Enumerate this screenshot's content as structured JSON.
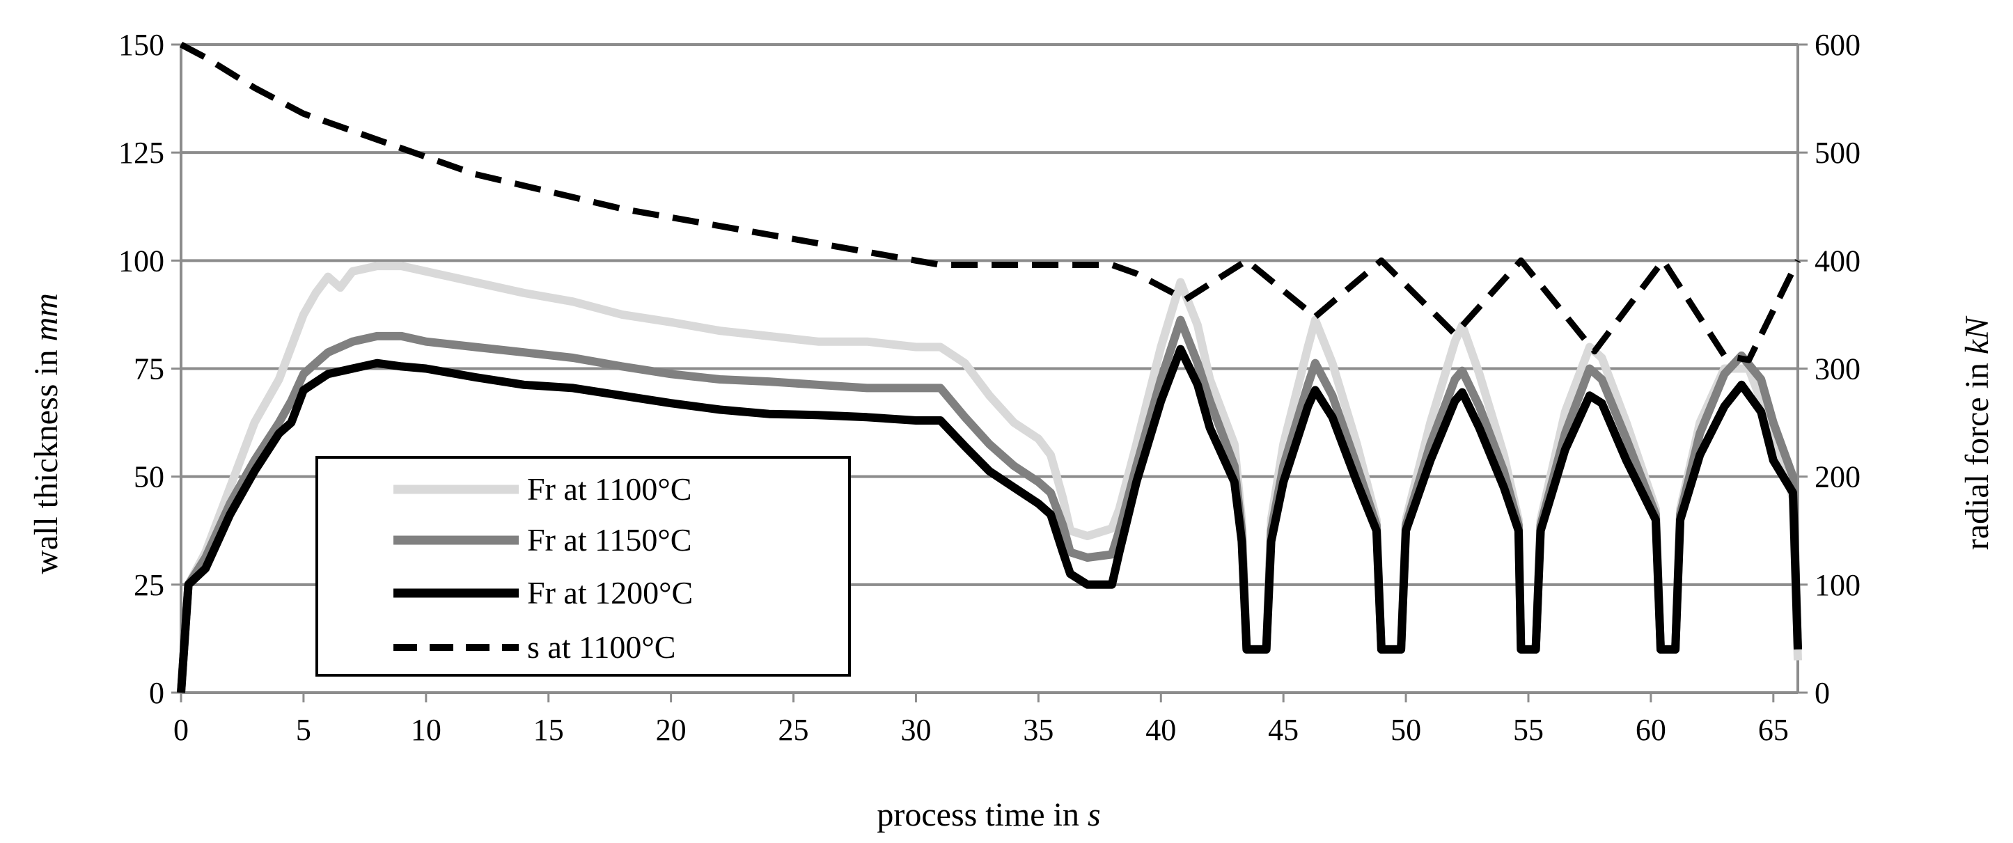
{
  "chart_data": {
    "type": "line",
    "title": "",
    "xlabel": {
      "text": "process time in ",
      "unit": "s"
    },
    "ylabel_left": {
      "text": "wall thickness in ",
      "unit": "mm"
    },
    "ylabel_right": {
      "text": "radial force in ",
      "unit": "kN"
    },
    "xlim": [
      0,
      66
    ],
    "ylim_left": [
      0,
      150
    ],
    "ylim_right": [
      0,
      600
    ],
    "x_ticks": [
      "0",
      "5",
      "10",
      "15",
      "20",
      "25",
      "30",
      "35",
      "40",
      "45",
      "50",
      "55",
      "60",
      "65"
    ],
    "y_left_ticks": [
      "0",
      "25",
      "50",
      "75",
      "100",
      "125",
      "150"
    ],
    "y_right_ticks": [
      "0",
      "100",
      "200",
      "300",
      "400",
      "500",
      "600"
    ],
    "grid": "horizontal",
    "legend_position": "lower-left",
    "series": [
      {
        "name": "Fr at 1100°C",
        "axis": "right",
        "color": "#d9d9d9",
        "style": "solid",
        "points": [
          [
            0,
            0
          ],
          [
            0.3,
            100
          ],
          [
            1,
            130
          ],
          [
            2,
            190
          ],
          [
            3,
            250
          ],
          [
            4,
            290
          ],
          [
            5,
            350
          ],
          [
            5.5,
            370
          ],
          [
            6,
            385
          ],
          [
            6.5,
            375
          ],
          [
            7,
            390
          ],
          [
            8,
            395
          ],
          [
            9,
            395
          ],
          [
            10,
            390
          ],
          [
            12,
            380
          ],
          [
            14,
            370
          ],
          [
            16,
            362
          ],
          [
            18,
            350
          ],
          [
            20,
            343
          ],
          [
            22,
            335
          ],
          [
            24,
            330
          ],
          [
            26,
            325
          ],
          [
            28,
            325
          ],
          [
            30,
            320
          ],
          [
            31,
            320
          ],
          [
            32,
            305
          ],
          [
            33,
            275
          ],
          [
            34,
            250
          ],
          [
            35,
            235
          ],
          [
            35.5,
            220
          ],
          [
            36,
            180
          ],
          [
            36.3,
            150
          ],
          [
            37,
            145
          ],
          [
            38,
            152
          ],
          [
            38.3,
            170
          ],
          [
            39,
            230
          ],
          [
            40,
            320
          ],
          [
            40.8,
            380
          ],
          [
            41.5,
            340
          ],
          [
            42,
            290
          ],
          [
            43,
            230
          ],
          [
            43.3,
            160
          ],
          [
            43.5,
            40
          ],
          [
            44.3,
            40
          ],
          [
            44.5,
            160
          ],
          [
            45,
            230
          ],
          [
            46,
            320
          ],
          [
            46.3,
            345
          ],
          [
            47,
            305
          ],
          [
            48,
            230
          ],
          [
            48.8,
            160
          ],
          [
            49,
            40
          ],
          [
            49.8,
            40
          ],
          [
            50,
            160
          ],
          [
            51,
            250
          ],
          [
            52,
            325
          ],
          [
            52.3,
            340
          ],
          [
            53,
            295
          ],
          [
            54,
            220
          ],
          [
            54.6,
            160
          ],
          [
            54.7,
            40
          ],
          [
            55.3,
            40
          ],
          [
            55.5,
            160
          ],
          [
            56.5,
            260
          ],
          [
            57.5,
            320
          ],
          [
            58,
            310
          ],
          [
            59,
            250
          ],
          [
            60.2,
            170
          ],
          [
            60.4,
            40
          ],
          [
            61,
            40
          ],
          [
            61.2,
            170
          ],
          [
            62,
            250
          ],
          [
            63,
            300
          ],
          [
            64,
            300
          ],
          [
            65,
            240
          ],
          [
            65.8,
            180
          ],
          [
            66,
            30
          ]
        ]
      },
      {
        "name": "Fr at 1150°C",
        "axis": "right",
        "color": "#808080",
        "style": "solid",
        "points": [
          [
            0,
            0
          ],
          [
            0.3,
            100
          ],
          [
            1,
            125
          ],
          [
            2,
            175
          ],
          [
            3,
            215
          ],
          [
            4,
            250
          ],
          [
            4.5,
            270
          ],
          [
            5,
            295
          ],
          [
            6,
            315
          ],
          [
            7,
            325
          ],
          [
            8,
            330
          ],
          [
            9,
            330
          ],
          [
            10,
            325
          ],
          [
            12,
            320
          ],
          [
            14,
            315
          ],
          [
            16,
            310
          ],
          [
            18,
            302
          ],
          [
            20,
            295
          ],
          [
            22,
            290
          ],
          [
            24,
            288
          ],
          [
            26,
            285
          ],
          [
            28,
            282
          ],
          [
            30,
            282
          ],
          [
            31,
            282
          ],
          [
            32,
            255
          ],
          [
            33,
            230
          ],
          [
            34,
            210
          ],
          [
            35,
            195
          ],
          [
            35.5,
            185
          ],
          [
            36,
            155
          ],
          [
            36.3,
            130
          ],
          [
            37,
            125
          ],
          [
            38,
            128
          ],
          [
            38.3,
            150
          ],
          [
            39,
            210
          ],
          [
            40,
            290
          ],
          [
            40.8,
            345
          ],
          [
            41.5,
            305
          ],
          [
            42,
            270
          ],
          [
            43,
            210
          ],
          [
            43.3,
            150
          ],
          [
            43.5,
            40
          ],
          [
            44.3,
            40
          ],
          [
            44.5,
            150
          ],
          [
            45,
            210
          ],
          [
            46,
            285
          ],
          [
            46.3,
            305
          ],
          [
            47,
            275
          ],
          [
            48,
            210
          ],
          [
            48.8,
            155
          ],
          [
            49,
            40
          ],
          [
            49.8,
            40
          ],
          [
            50,
            155
          ],
          [
            51,
            230
          ],
          [
            52,
            290
          ],
          [
            52.3,
            298
          ],
          [
            53,
            265
          ],
          [
            54,
            205
          ],
          [
            54.6,
            155
          ],
          [
            54.7,
            40
          ],
          [
            55.3,
            40
          ],
          [
            55.5,
            155
          ],
          [
            56.5,
            240
          ],
          [
            57.5,
            300
          ],
          [
            58,
            290
          ],
          [
            59,
            235
          ],
          [
            60.2,
            165
          ],
          [
            60.4,
            40
          ],
          [
            61,
            40
          ],
          [
            61.2,
            165
          ],
          [
            62,
            240
          ],
          [
            63,
            295
          ],
          [
            63.7,
            312
          ],
          [
            64.5,
            290
          ],
          [
            65,
            250
          ],
          [
            65.8,
            200
          ],
          [
            66,
            40
          ]
        ]
      },
      {
        "name": "Fr at 1200°C",
        "axis": "right",
        "color": "#000000",
        "style": "solid",
        "points": [
          [
            0,
            0
          ],
          [
            0.3,
            100
          ],
          [
            1,
            115
          ],
          [
            2,
            165
          ],
          [
            3,
            205
          ],
          [
            4,
            240
          ],
          [
            4.5,
            250
          ],
          [
            5,
            280
          ],
          [
            6,
            295
          ],
          [
            7,
            300
          ],
          [
            8,
            305
          ],
          [
            9,
            302
          ],
          [
            10,
            300
          ],
          [
            12,
            292
          ],
          [
            14,
            285
          ],
          [
            16,
            282
          ],
          [
            18,
            275
          ],
          [
            20,
            268
          ],
          [
            22,
            262
          ],
          [
            24,
            258
          ],
          [
            26,
            257
          ],
          [
            28,
            255
          ],
          [
            30,
            252
          ],
          [
            31,
            252
          ],
          [
            32,
            228
          ],
          [
            33,
            205
          ],
          [
            34,
            190
          ],
          [
            35,
            175
          ],
          [
            35.5,
            165
          ],
          [
            36,
            130
          ],
          [
            36.3,
            110
          ],
          [
            37,
            100
          ],
          [
            38,
            100
          ],
          [
            38.3,
            130
          ],
          [
            39,
            195
          ],
          [
            40,
            270
          ],
          [
            40.8,
            318
          ],
          [
            41.5,
            285
          ],
          [
            42,
            245
          ],
          [
            43,
            195
          ],
          [
            43.3,
            140
          ],
          [
            43.5,
            40
          ],
          [
            44.3,
            40
          ],
          [
            44.5,
            140
          ],
          [
            45,
            195
          ],
          [
            46,
            265
          ],
          [
            46.3,
            280
          ],
          [
            47,
            255
          ],
          [
            48,
            195
          ],
          [
            48.8,
            150
          ],
          [
            49,
            40
          ],
          [
            49.8,
            40
          ],
          [
            50,
            150
          ],
          [
            51,
            215
          ],
          [
            52,
            270
          ],
          [
            52.3,
            278
          ],
          [
            53,
            245
          ],
          [
            54,
            190
          ],
          [
            54.6,
            150
          ],
          [
            54.7,
            40
          ],
          [
            55.3,
            40
          ],
          [
            55.5,
            150
          ],
          [
            56.5,
            225
          ],
          [
            57.5,
            275
          ],
          [
            58,
            268
          ],
          [
            59,
            215
          ],
          [
            60.2,
            160
          ],
          [
            60.4,
            40
          ],
          [
            61,
            40
          ],
          [
            61.2,
            160
          ],
          [
            62,
            220
          ],
          [
            63,
            265
          ],
          [
            63.7,
            285
          ],
          [
            64.5,
            260
          ],
          [
            65,
            215
          ],
          [
            65.8,
            185
          ],
          [
            66,
            40
          ]
        ]
      },
      {
        "name": "s at 1100°C",
        "axis": "left",
        "color": "#000000",
        "style": "dashed",
        "points": [
          [
            0,
            150
          ],
          [
            1,
            147
          ],
          [
            3,
            140
          ],
          [
            5,
            134
          ],
          [
            8,
            128
          ],
          [
            10,
            124
          ],
          [
            12,
            120
          ],
          [
            15,
            116
          ],
          [
            18,
            112
          ],
          [
            20,
            110
          ],
          [
            25,
            105
          ],
          [
            30,
            100
          ],
          [
            31,
            99
          ],
          [
            38,
            99
          ],
          [
            39,
            97
          ],
          [
            40,
            94
          ],
          [
            41,
            91
          ],
          [
            43.5,
            100
          ],
          [
            46.3,
            87
          ],
          [
            49,
            100
          ],
          [
            52,
            83
          ],
          [
            54.7,
            100
          ],
          [
            57.7,
            79
          ],
          [
            60.5,
            100
          ],
          [
            63,
            78
          ],
          [
            64,
            77
          ],
          [
            66,
            100
          ]
        ]
      }
    ]
  }
}
